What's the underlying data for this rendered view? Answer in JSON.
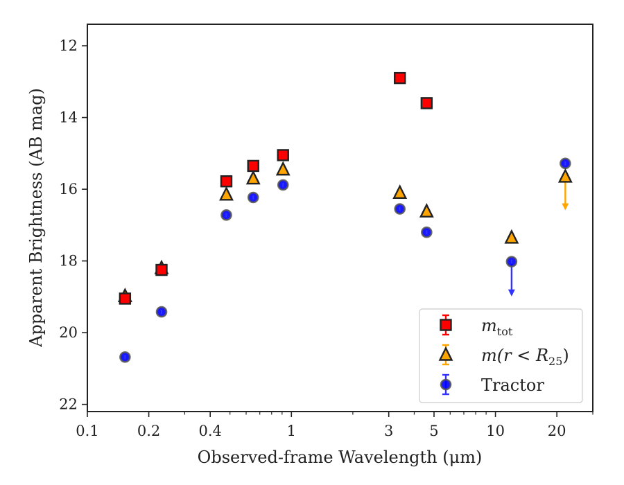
{
  "chart_data": {
    "type": "scatter",
    "xlabel": "Observed-frame Wavelength (μm)",
    "ylabel": "Apparent Brightness (AB mag)",
    "x_scale": "log",
    "xlim": [
      0.1,
      30
    ],
    "ylim": [
      22.2,
      11.4
    ],
    "y_inverted": true,
    "x_ticks": [
      {
        "value": 0.1,
        "label": "0.1"
      },
      {
        "value": 0.2,
        "label": "0.2"
      },
      {
        "value": 0.4,
        "label": "0.4"
      },
      {
        "value": 1,
        "label": "1"
      },
      {
        "value": 3,
        "label": "3"
      },
      {
        "value": 5,
        "label": "5"
      },
      {
        "value": 10,
        "label": "10"
      },
      {
        "value": 20,
        "label": "20"
      }
    ],
    "y_ticks": [
      {
        "value": 12,
        "label": "12"
      },
      {
        "value": 14,
        "label": "14"
      },
      {
        "value": 16,
        "label": "16"
      },
      {
        "value": 18,
        "label": "18"
      },
      {
        "value": 20,
        "label": "20"
      },
      {
        "value": 22,
        "label": "22"
      }
    ],
    "grid": false,
    "legend_position": "lower-right",
    "series": [
      {
        "name": "m_tot",
        "label_main": "m",
        "label_sub": "tot",
        "marker": "square",
        "color": "#ff0000",
        "errorbar_color": "#ff0000",
        "points": [
          {
            "x": 0.153,
            "y": 19.05
          },
          {
            "x": 0.231,
            "y": 18.25
          },
          {
            "x": 0.48,
            "y": 15.78
          },
          {
            "x": 0.65,
            "y": 15.35
          },
          {
            "x": 0.91,
            "y": 15.05
          },
          {
            "x": 3.4,
            "y": 12.9
          },
          {
            "x": 4.6,
            "y": 13.6
          }
        ]
      },
      {
        "name": "m(r < R_25)",
        "label_main": "m(r < R",
        "label_sub": "25",
        "label_end": ")",
        "marker": "triangle",
        "color": "#ffa500",
        "errorbar_color": "#ffa500",
        "points": [
          {
            "x": 0.153,
            "y": 18.98
          },
          {
            "x": 0.231,
            "y": 18.2
          },
          {
            "x": 0.48,
            "y": 16.15
          },
          {
            "x": 0.65,
            "y": 15.7
          },
          {
            "x": 0.91,
            "y": 15.45
          },
          {
            "x": 3.4,
            "y": 16.1
          },
          {
            "x": 4.6,
            "y": 16.62
          },
          {
            "x": 12,
            "y": 17.35
          },
          {
            "x": 22,
            "y": 15.65,
            "upper_limit": true,
            "arrow_to": 16.55
          }
        ]
      },
      {
        "name": "Tractor",
        "marker": "circle",
        "color": "#0000ff",
        "errorbar_color": "#3333ff",
        "points": [
          {
            "x": 0.153,
            "y": 20.68
          },
          {
            "x": 0.231,
            "y": 19.42
          },
          {
            "x": 0.48,
            "y": 16.72
          },
          {
            "x": 0.65,
            "y": 16.23
          },
          {
            "x": 0.91,
            "y": 15.88
          },
          {
            "x": 3.4,
            "y": 16.55
          },
          {
            "x": 4.6,
            "y": 17.2
          },
          {
            "x": 12,
            "y": 18.02,
            "upper_limit": true,
            "arrow_to": 18.95
          },
          {
            "x": 22,
            "y": 15.28
          }
        ]
      }
    ]
  }
}
